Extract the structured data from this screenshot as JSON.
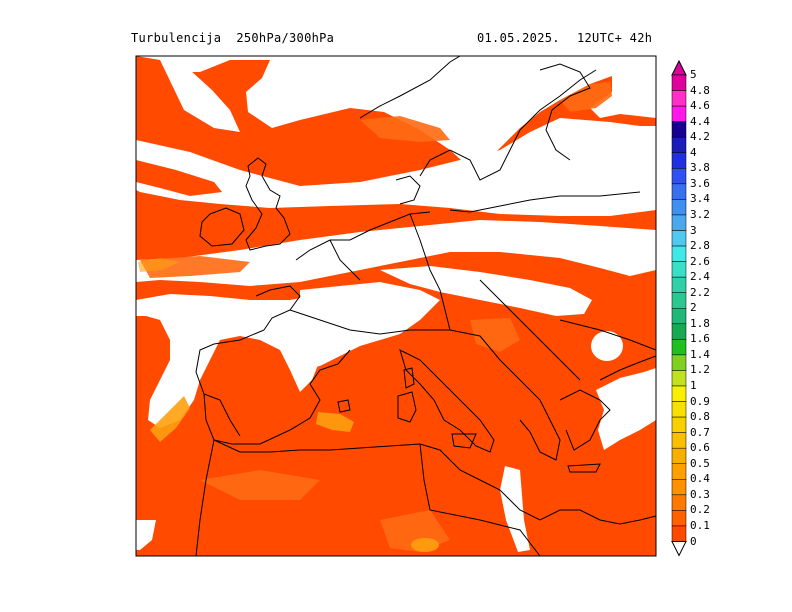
{
  "header": {
    "title": "Turbulencija  250hPa/300hPa",
    "date": "01.05.2025.",
    "run": "12UTC+ 42h"
  },
  "colors": {
    "ocean_background": "#ffffff",
    "field_main": "#ff4a00",
    "field_light": "#ff6a12",
    "field_yellow": "#ffa010",
    "coastline": "#000000"
  },
  "legend": {
    "labels": [
      "5",
      "4.8",
      "4.6",
      "4.4",
      "4.2",
      "4",
      "3.8",
      "3.6",
      "3.4",
      "3.2",
      "3",
      "2.8",
      "2.6",
      "2.4",
      "2.2",
      "2",
      "1.8",
      "1.6",
      "1.4",
      "1.2",
      "1",
      "0.9",
      "0.8",
      "0.7",
      "0.6",
      "0.5",
      "0.4",
      "0.3",
      "0.2",
      "0.1",
      "0"
    ],
    "colors": [
      "#e0009c",
      "#ff30c8",
      "#ff18e8",
      "#180090",
      "#1c1cb8",
      "#2030e0",
      "#3050f0",
      "#3870f0",
      "#4090f0",
      "#48a8f0",
      "#50c8f0",
      "#40e8e8",
      "#38e0c8",
      "#30d0a8",
      "#28c890",
      "#20b878",
      "#18a850",
      "#20c020",
      "#80d020",
      "#c0e020",
      "#f8f000",
      "#f8e000",
      "#f8d000",
      "#f8c000",
      "#f8b000",
      "#ffa000",
      "#ff9000",
      "#ff7800",
      "#ff6000",
      "#ff4800"
    ]
  }
}
